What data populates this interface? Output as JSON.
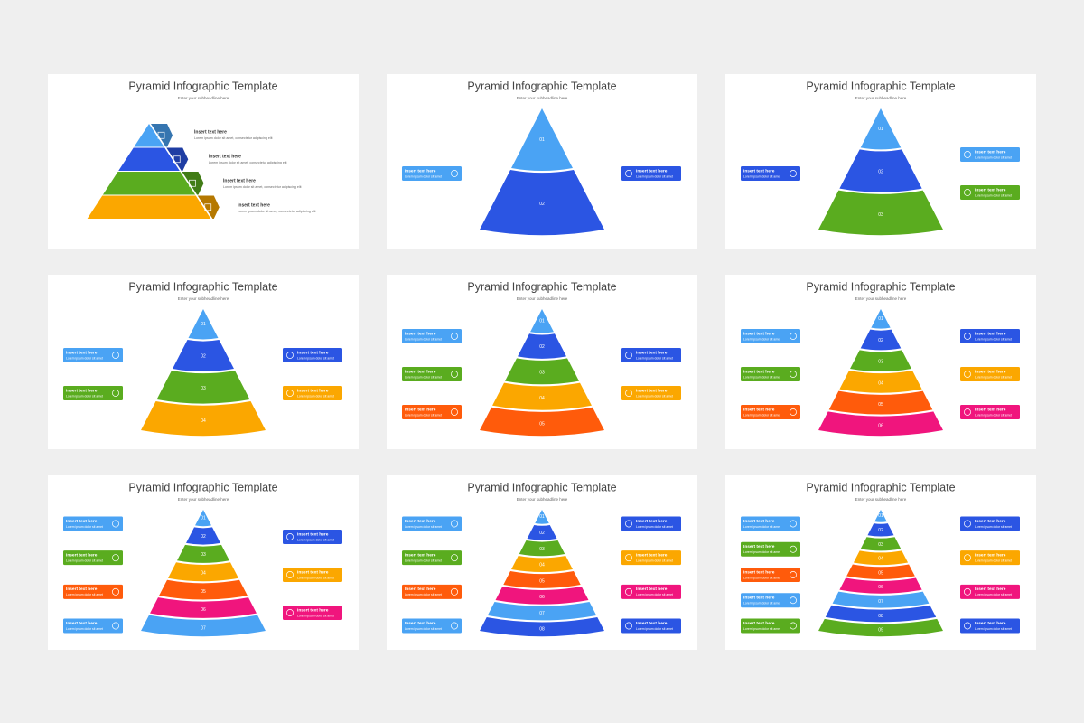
{
  "slides": [
    {
      "title": "Pyramid Infographic Template",
      "subtitle": "Enter your subheadline here",
      "layers": [
        {
          "color": "#4aa3f4"
        },
        {
          "color": "#2b55e3"
        },
        {
          "color": "#5aac1f"
        },
        {
          "color": "#fba700"
        }
      ],
      "callouts_right": [
        {
          "title": "Insert text here",
          "text": "Lorem ipsum dolor sit amet, consectetur adipiscing elit"
        },
        {
          "title": "Insert text here",
          "text": "Lorem ipsum dolor sit amet, consectetur adipiscing elit"
        },
        {
          "title": "Insert text here",
          "text": "Lorem ipsum dolor sit amet, consectetur adipiscing elit"
        },
        {
          "title": "Insert text here",
          "text": "Lorem ipsum dolor sit amet, consectetur adipiscing elit"
        }
      ]
    },
    {
      "title": "Pyramid Infographic Template",
      "subtitle": "Enter your subheadline here",
      "layers": [
        {
          "label": "01",
          "color": "#4aa3f4"
        },
        {
          "label": "02",
          "color": "#2b55e3"
        }
      ],
      "callouts_left": [
        {
          "title": "Insert text here",
          "text": "Lorem ipsum dolor sit amet",
          "color": "#4aa3f4"
        }
      ],
      "callouts_right": [
        {
          "title": "Insert text here",
          "text": "Lorem ipsum dolor sit amet",
          "color": "#2b55e3"
        }
      ]
    },
    {
      "title": "Pyramid Infographic Template",
      "subtitle": "Enter your subheadline here",
      "layers": [
        {
          "label": "01",
          "color": "#4aa3f4"
        },
        {
          "label": "02",
          "color": "#2b55e3"
        },
        {
          "label": "03",
          "color": "#5aac1f"
        }
      ],
      "callouts_left": [
        {
          "title": "Insert text here",
          "text": "Lorem ipsum dolor sit amet",
          "color": "#2b55e3"
        }
      ],
      "callouts_right": [
        {
          "title": "Insert text here",
          "text": "Lorem ipsum dolor sit amet",
          "color": "#4aa3f4"
        },
        {
          "title": "Insert text here",
          "text": "Lorem ipsum dolor sit amet",
          "color": "#5aac1f"
        }
      ]
    },
    {
      "title": "Pyramid Infographic Template",
      "subtitle": "Enter your subheadline here",
      "layers": [
        {
          "label": "01",
          "color": "#4aa3f4"
        },
        {
          "label": "02",
          "color": "#2b55e3"
        },
        {
          "label": "03",
          "color": "#5aac1f"
        },
        {
          "label": "04",
          "color": "#fba700"
        }
      ],
      "callouts_left": [
        {
          "title": "Insert text here",
          "text": "Lorem ipsum dolor sit amet",
          "color": "#4aa3f4"
        },
        {
          "title": "Insert text here",
          "text": "Lorem ipsum dolor sit amet",
          "color": "#5aac1f"
        }
      ],
      "callouts_right": [
        {
          "title": "Insert text here",
          "text": "Lorem ipsum dolor sit amet",
          "color": "#2b55e3"
        },
        {
          "title": "Insert text here",
          "text": "Lorem ipsum dolor sit amet",
          "color": "#fba700"
        }
      ]
    },
    {
      "title": "Pyramid Infographic Template",
      "subtitle": "Enter your subheadline here",
      "layers": [
        {
          "label": "01",
          "color": "#4aa3f4"
        },
        {
          "label": "02",
          "color": "#2b55e3"
        },
        {
          "label": "03",
          "color": "#5aac1f"
        },
        {
          "label": "04",
          "color": "#fba700"
        },
        {
          "label": "05",
          "color": "#ff5b0b"
        }
      ],
      "callouts_left": [
        {
          "title": "Insert text here",
          "text": "Lorem ipsum dolor sit amet",
          "color": "#4aa3f4"
        },
        {
          "title": "Insert text here",
          "text": "Lorem ipsum dolor sit amet",
          "color": "#5aac1f"
        },
        {
          "title": "Insert text here",
          "text": "Lorem ipsum dolor sit amet",
          "color": "#ff5b0b"
        }
      ],
      "callouts_right": [
        {
          "title": "Insert text here",
          "text": "Lorem ipsum dolor sit amet",
          "color": "#2b55e3"
        },
        {
          "title": "Insert text here",
          "text": "Lorem ipsum dolor sit amet",
          "color": "#fba700"
        }
      ]
    },
    {
      "title": "Pyramid Infographic Template",
      "subtitle": "Enter your subheadline here",
      "layers": [
        {
          "label": "01",
          "color": "#4aa3f4"
        },
        {
          "label": "02",
          "color": "#2b55e3"
        },
        {
          "label": "03",
          "color": "#5aac1f"
        },
        {
          "label": "04",
          "color": "#fba700"
        },
        {
          "label": "05",
          "color": "#ff5b0b"
        },
        {
          "label": "06",
          "color": "#f0157d"
        }
      ],
      "callouts_left": [
        {
          "title": "Insert text here",
          "text": "Lorem ipsum dolor sit amet",
          "color": "#4aa3f4"
        },
        {
          "title": "Insert text here",
          "text": "Lorem ipsum dolor sit amet",
          "color": "#5aac1f"
        },
        {
          "title": "Insert text here",
          "text": "Lorem ipsum dolor sit amet",
          "color": "#ff5b0b"
        }
      ],
      "callouts_right": [
        {
          "title": "Insert text here",
          "text": "Lorem ipsum dolor sit amet",
          "color": "#2b55e3"
        },
        {
          "title": "Insert text here",
          "text": "Lorem ipsum dolor sit amet",
          "color": "#fba700"
        },
        {
          "title": "Insert text here",
          "text": "Lorem ipsum dolor sit amet",
          "color": "#f0157d"
        }
      ]
    },
    {
      "title": "Pyramid Infographic Template",
      "subtitle": "Enter your subheadline here",
      "layers": [
        {
          "label": "01",
          "color": "#4aa3f4"
        },
        {
          "label": "02",
          "color": "#2b55e3"
        },
        {
          "label": "03",
          "color": "#5aac1f"
        },
        {
          "label": "04",
          "color": "#fba700"
        },
        {
          "label": "05",
          "color": "#ff5b0b"
        },
        {
          "label": "06",
          "color": "#f0157d"
        },
        {
          "label": "07",
          "color": "#4aa3f4"
        }
      ],
      "callouts_left": [
        {
          "title": "Insert text here",
          "text": "Lorem ipsum dolor sit amet",
          "color": "#4aa3f4"
        },
        {
          "title": "Insert text here",
          "text": "Lorem ipsum dolor sit amet",
          "color": "#5aac1f"
        },
        {
          "title": "Insert text here",
          "text": "Lorem ipsum dolor sit amet",
          "color": "#ff5b0b"
        },
        {
          "title": "Insert text here",
          "text": "Lorem ipsum dolor sit amet",
          "color": "#4aa3f4"
        }
      ],
      "callouts_right": [
        {
          "title": "Insert text here",
          "text": "Lorem ipsum dolor sit amet",
          "color": "#2b55e3"
        },
        {
          "title": "Insert text here",
          "text": "Lorem ipsum dolor sit amet",
          "color": "#fba700"
        },
        {
          "title": "Insert text here",
          "text": "Lorem ipsum dolor sit amet",
          "color": "#f0157d"
        }
      ]
    },
    {
      "title": "Pyramid Infographic Template",
      "subtitle": "Enter your subheadline here",
      "layers": [
        {
          "label": "01",
          "color": "#4aa3f4"
        },
        {
          "label": "02",
          "color": "#2b55e3"
        },
        {
          "label": "03",
          "color": "#5aac1f"
        },
        {
          "label": "04",
          "color": "#fba700"
        },
        {
          "label": "05",
          "color": "#ff5b0b"
        },
        {
          "label": "06",
          "color": "#f0157d"
        },
        {
          "label": "07",
          "color": "#4aa3f4"
        },
        {
          "label": "08",
          "color": "#2b55e3"
        }
      ],
      "callouts_left": [
        {
          "title": "Insert text here",
          "text": "Lorem ipsum dolor sit amet",
          "color": "#4aa3f4"
        },
        {
          "title": "Insert text here",
          "text": "Lorem ipsum dolor sit amet",
          "color": "#5aac1f"
        },
        {
          "title": "Insert text here",
          "text": "Lorem ipsum dolor sit amet",
          "color": "#ff5b0b"
        },
        {
          "title": "Insert text here",
          "text": "Lorem ipsum dolor sit amet",
          "color": "#4aa3f4"
        }
      ],
      "callouts_right": [
        {
          "title": "Insert text here",
          "text": "Lorem ipsum dolor sit amet",
          "color": "#2b55e3"
        },
        {
          "title": "Insert text here",
          "text": "Lorem ipsum dolor sit amet",
          "color": "#fba700"
        },
        {
          "title": "Insert text here",
          "text": "Lorem ipsum dolor sit amet",
          "color": "#f0157d"
        },
        {
          "title": "Insert text here",
          "text": "Lorem ipsum dolor sit amet",
          "color": "#2b55e3"
        }
      ]
    },
    {
      "title": "Pyramid Infographic Template",
      "subtitle": "Enter your subheadline here",
      "layers": [
        {
          "label": "01",
          "color": "#4aa3f4"
        },
        {
          "label": "02",
          "color": "#2b55e3"
        },
        {
          "label": "03",
          "color": "#5aac1f"
        },
        {
          "label": "04",
          "color": "#fba700"
        },
        {
          "label": "05",
          "color": "#ff5b0b"
        },
        {
          "label": "06",
          "color": "#f0157d"
        },
        {
          "label": "07",
          "color": "#4aa3f4"
        },
        {
          "label": "08",
          "color": "#2b55e3"
        },
        {
          "label": "09",
          "color": "#5aac1f"
        }
      ],
      "callouts_left": [
        {
          "title": "Insert text here",
          "text": "Lorem ipsum dolor sit amet",
          "color": "#4aa3f4"
        },
        {
          "title": "Insert text here",
          "text": "Lorem ipsum dolor sit amet",
          "color": "#5aac1f"
        },
        {
          "title": "Insert text here",
          "text": "Lorem ipsum dolor sit amet",
          "color": "#ff5b0b"
        },
        {
          "title": "Insert text here",
          "text": "Lorem ipsum dolor sit amet",
          "color": "#4aa3f4"
        },
        {
          "title": "Insert text here",
          "text": "Lorem ipsum dolor sit amet",
          "color": "#5aac1f"
        }
      ],
      "callouts_right": [
        {
          "title": "Insert text here",
          "text": "Lorem ipsum dolor sit amet",
          "color": "#2b55e3"
        },
        {
          "title": "Insert text here",
          "text": "Lorem ipsum dolor sit amet",
          "color": "#fba700"
        },
        {
          "title": "Insert text here",
          "text": "Lorem ipsum dolor sit amet",
          "color": "#f0157d"
        },
        {
          "title": "Insert text here",
          "text": "Lorem ipsum dolor sit amet",
          "color": "#2b55e3"
        }
      ]
    }
  ]
}
